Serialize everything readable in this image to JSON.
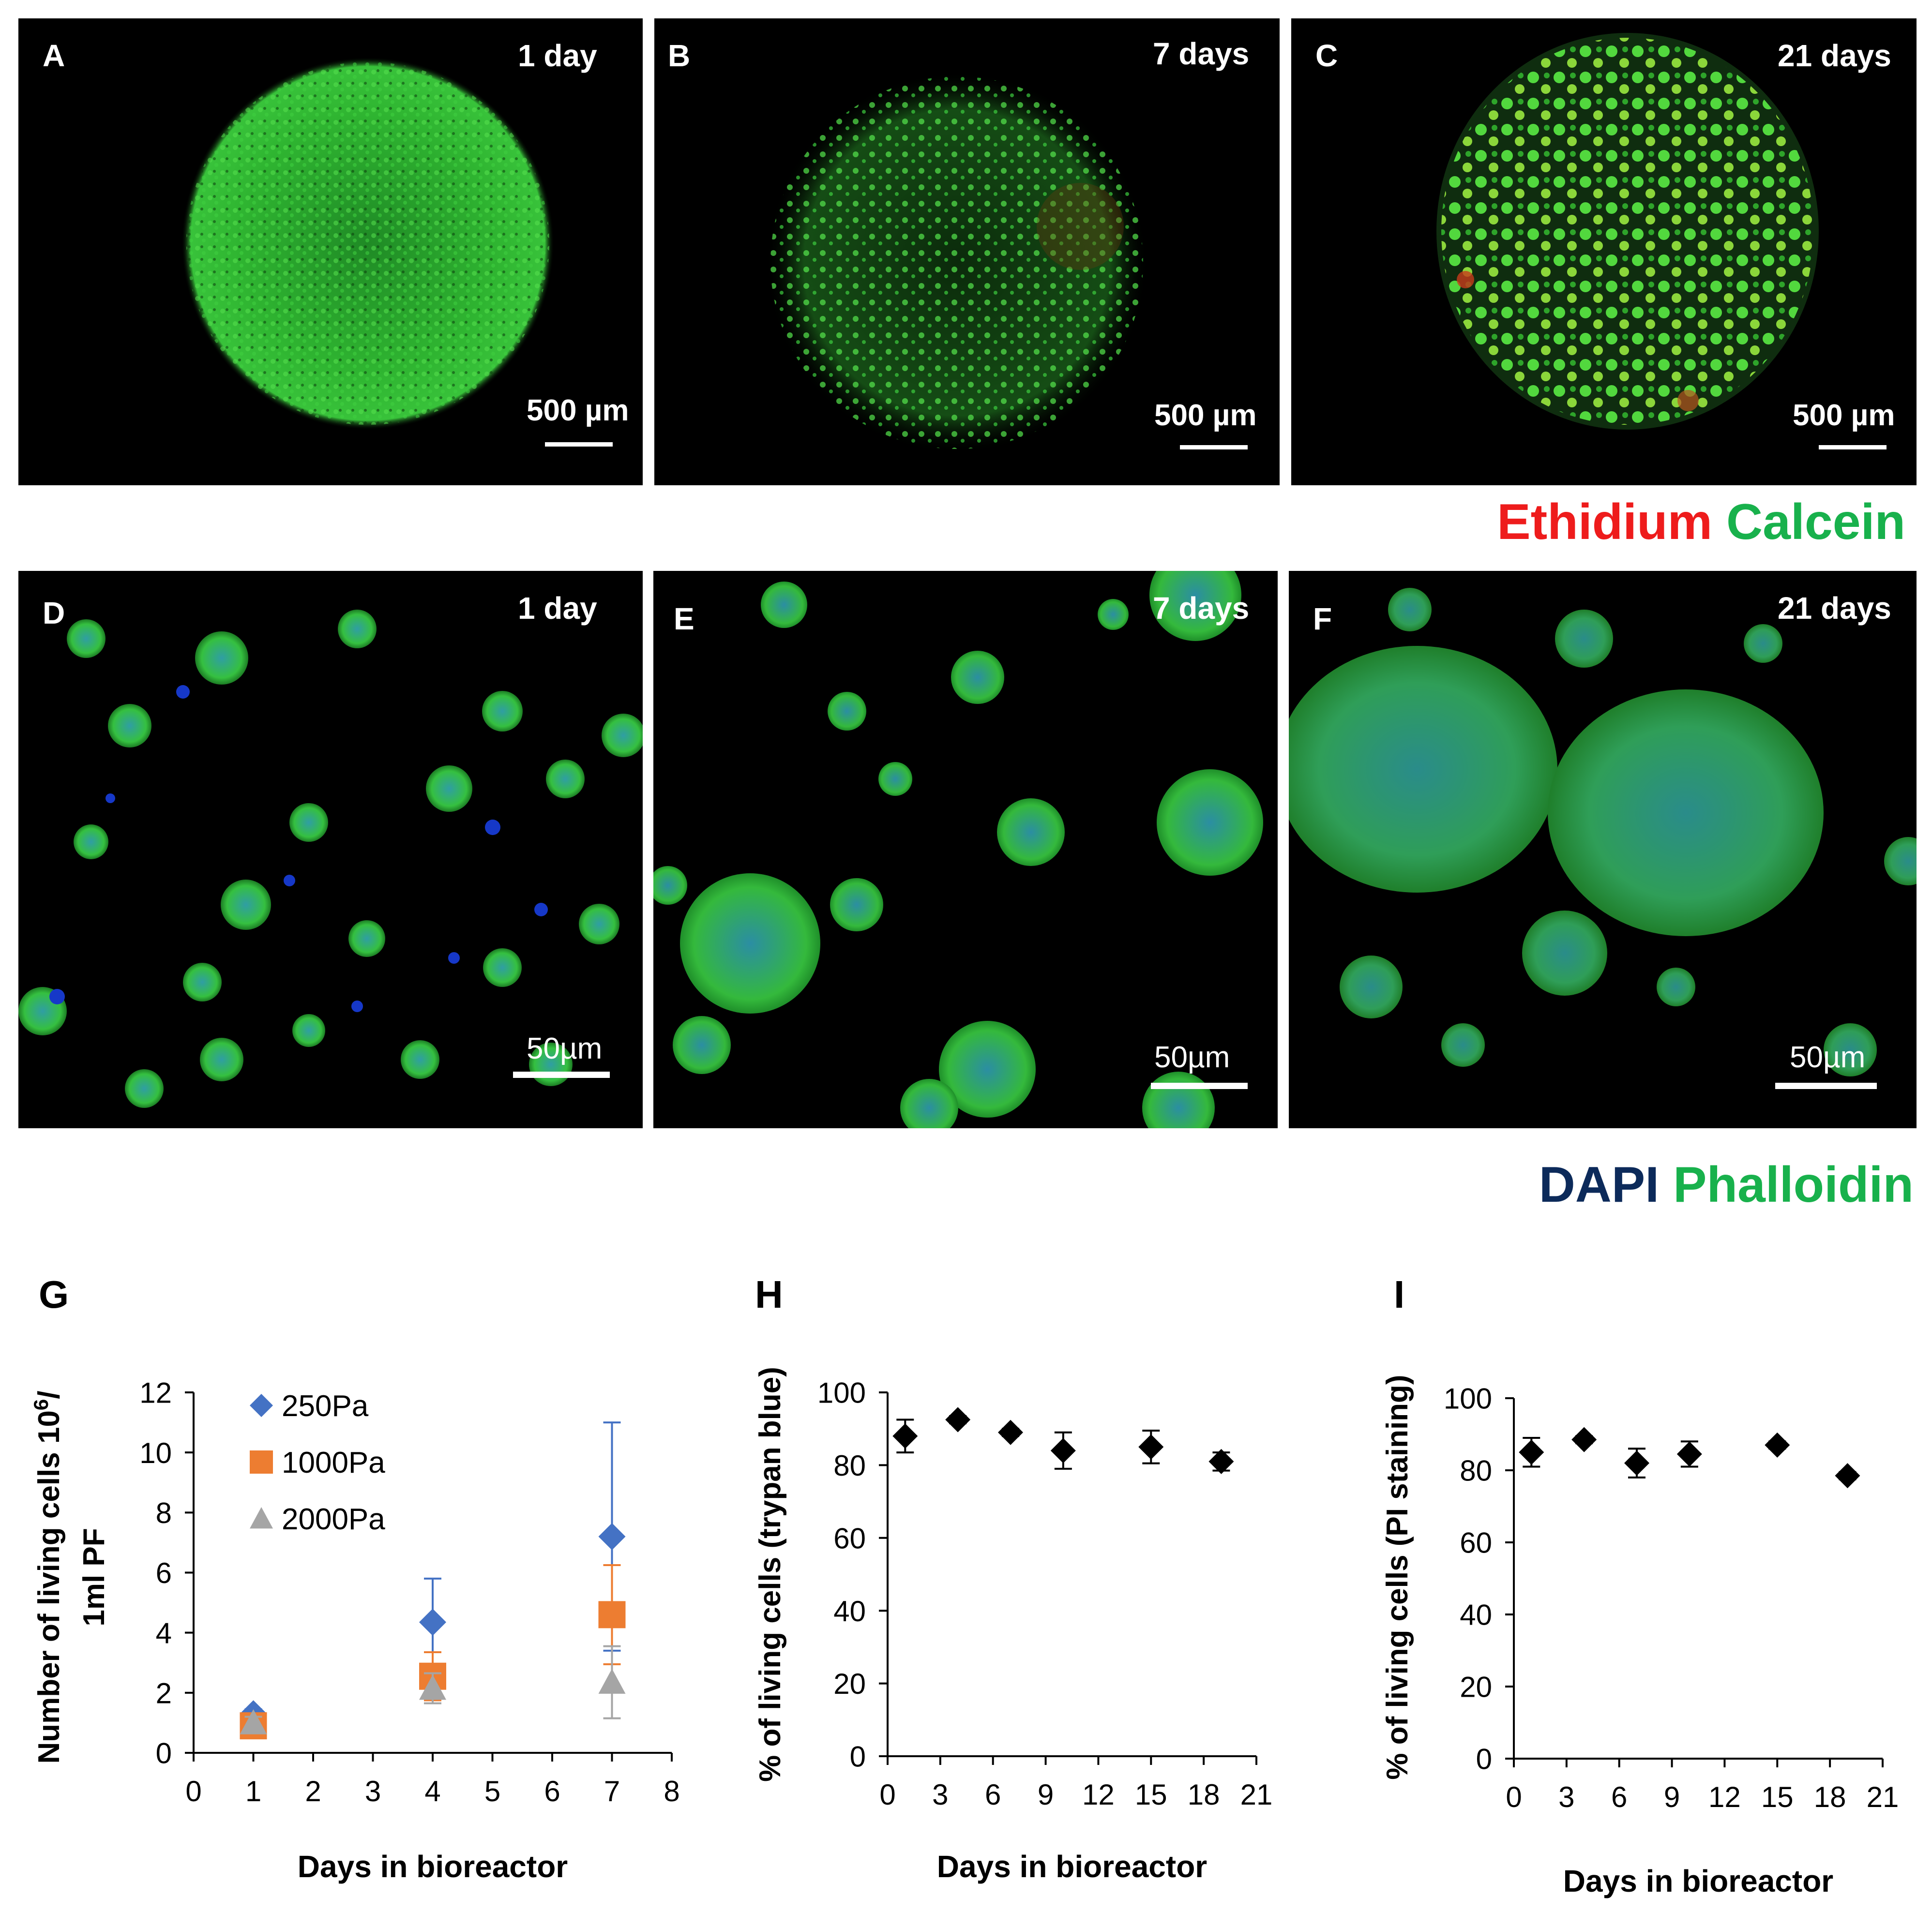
{
  "micrographs_top": [
    {
      "letter": "A",
      "time": "1 day",
      "scale": "500 µm"
    },
    {
      "letter": "B",
      "time": "7 days",
      "scale": "500 µm"
    },
    {
      "letter": "C",
      "time": "21 days",
      "scale": "500 µm"
    }
  ],
  "stain_top": {
    "red": "Ethidium",
    "green": "Calcein"
  },
  "micrographs_bottom": [
    {
      "letter": "D",
      "time": "1 day",
      "scale": "50µm"
    },
    {
      "letter": "E",
      "time": "7 days",
      "scale": "50µm"
    },
    {
      "letter": "F",
      "time": "21 days",
      "scale": "50µm"
    }
  ],
  "stain_bottom": {
    "blue": "DAPI",
    "green": "Phalloidin"
  },
  "colors": {
    "red": "#ee1c1c",
    "green": "#18b14c",
    "navy": "#0c2a5a",
    "s250": "#4472c4",
    "s1000": "#ed7d31",
    "s2000": "#a5a5a5"
  },
  "chart_data": [
    {
      "letter": "G",
      "type": "scatter",
      "xlabel": "Days in bioreactor",
      "ylabel_line1": "Number of living cells 10",
      "ylabel_sup": "6",
      "ylabel_suffix": "/",
      "ylabel_line2": "1ml PF",
      "xlim": [
        0,
        8
      ],
      "ylim": [
        0,
        12
      ],
      "xticks": [
        0,
        1,
        2,
        3,
        4,
        5,
        6,
        7,
        8
      ],
      "yticks": [
        0,
        2,
        4,
        6,
        8,
        10,
        12
      ],
      "legend": "top-left",
      "series": [
        {
          "name": "250Pa",
          "marker": "diamond",
          "color": "#4472c4",
          "x": [
            1,
            4,
            7
          ],
          "y": [
            1.3,
            4.35,
            7.2
          ],
          "err": [
            0.15,
            1.45,
            3.8
          ]
        },
        {
          "name": "1000Pa",
          "marker": "square",
          "color": "#ed7d31",
          "x": [
            1,
            4,
            7
          ],
          "y": [
            0.9,
            2.55,
            4.6
          ],
          "err": [
            0.2,
            0.8,
            1.65
          ]
        },
        {
          "name": "2000Pa",
          "marker": "triangle",
          "color": "#a5a5a5",
          "x": [
            1,
            4,
            7
          ],
          "y": [
            1.0,
            2.15,
            2.35
          ],
          "err": [
            0.2,
            0.5,
            1.2
          ]
        }
      ]
    },
    {
      "letter": "H",
      "type": "scatter",
      "xlabel": "Days in bioreactor",
      "ylabel": "% of living cells (trypan blue)",
      "xlim": [
        0,
        21
      ],
      "ylim": [
        0,
        100
      ],
      "xticks": [
        0,
        3,
        6,
        9,
        12,
        15,
        18,
        21
      ],
      "yticks": [
        0,
        20,
        40,
        60,
        80,
        100
      ],
      "series": [
        {
          "marker": "diamond",
          "color": "#000000",
          "x": [
            1,
            4,
            7,
            10,
            15,
            19
          ],
          "y": [
            88,
            92.5,
            89,
            84,
            85,
            81
          ],
          "err": [
            4.5,
            1,
            1,
            5,
            4.5,
            2.5
          ]
        }
      ]
    },
    {
      "letter": "I",
      "type": "scatter",
      "xlabel": "Days in bioreactor",
      "ylabel": "% of living cells (PI staining)",
      "xlim": [
        0,
        21
      ],
      "ylim": [
        0,
        100
      ],
      "xticks": [
        0,
        3,
        6,
        9,
        12,
        15,
        18,
        21
      ],
      "yticks": [
        0,
        20,
        40,
        60,
        80,
        100
      ],
      "series": [
        {
          "marker": "diamond",
          "color": "#000000",
          "x": [
            1,
            4,
            7,
            10,
            15,
            19
          ],
          "y": [
            85,
            88.5,
            82,
            84.5,
            87,
            78.5
          ],
          "err": [
            4,
            1,
            4,
            3.5,
            1,
            1
          ]
        }
      ]
    }
  ]
}
